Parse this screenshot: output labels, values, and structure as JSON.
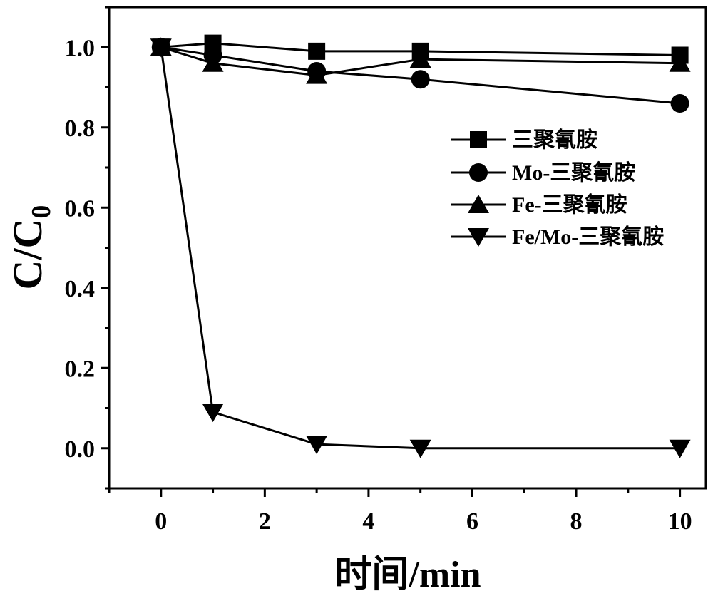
{
  "chart_data": {
    "type": "line",
    "xlabel": "时间/min",
    "ylabel_main": "C/C",
    "ylabel_sub": "0",
    "xlim": [
      -1,
      10.5
    ],
    "ylim": [
      -0.1,
      1.1
    ],
    "x_ticks": [
      0,
      2,
      4,
      6,
      8,
      10
    ],
    "x_tick_labels": [
      "0",
      "2",
      "4",
      "6",
      "8",
      "10"
    ],
    "y_ticks": [
      0.0,
      0.2,
      0.4,
      0.6,
      0.8,
      1.0
    ],
    "y_tick_labels": [
      "0.0",
      "0.2",
      "0.4",
      "0.6",
      "0.8",
      "1.0"
    ],
    "legend_position": "right",
    "series": [
      {
        "name": "三聚氰胺",
        "marker": "square",
        "x": [
          0,
          1,
          3,
          5,
          10
        ],
        "y": [
          1.0,
          1.01,
          0.99,
          0.99,
          0.98
        ]
      },
      {
        "name": "Mo-三聚氰胺",
        "marker": "circle",
        "x": [
          0,
          1,
          3,
          5,
          10
        ],
        "y": [
          1.0,
          0.98,
          0.94,
          0.92,
          0.86
        ]
      },
      {
        "name": "Fe-三聚氰胺",
        "marker": "triangle-up",
        "x": [
          0,
          1,
          3,
          5,
          10
        ],
        "y": [
          1.0,
          0.96,
          0.93,
          0.97,
          0.96
        ]
      },
      {
        "name": "Fe/Mo-三聚氰胺",
        "marker": "triangle-down",
        "x": [
          0,
          1,
          3,
          5,
          10
        ],
        "y": [
          1.0,
          0.09,
          0.01,
          0.0,
          0.0
        ]
      }
    ]
  }
}
